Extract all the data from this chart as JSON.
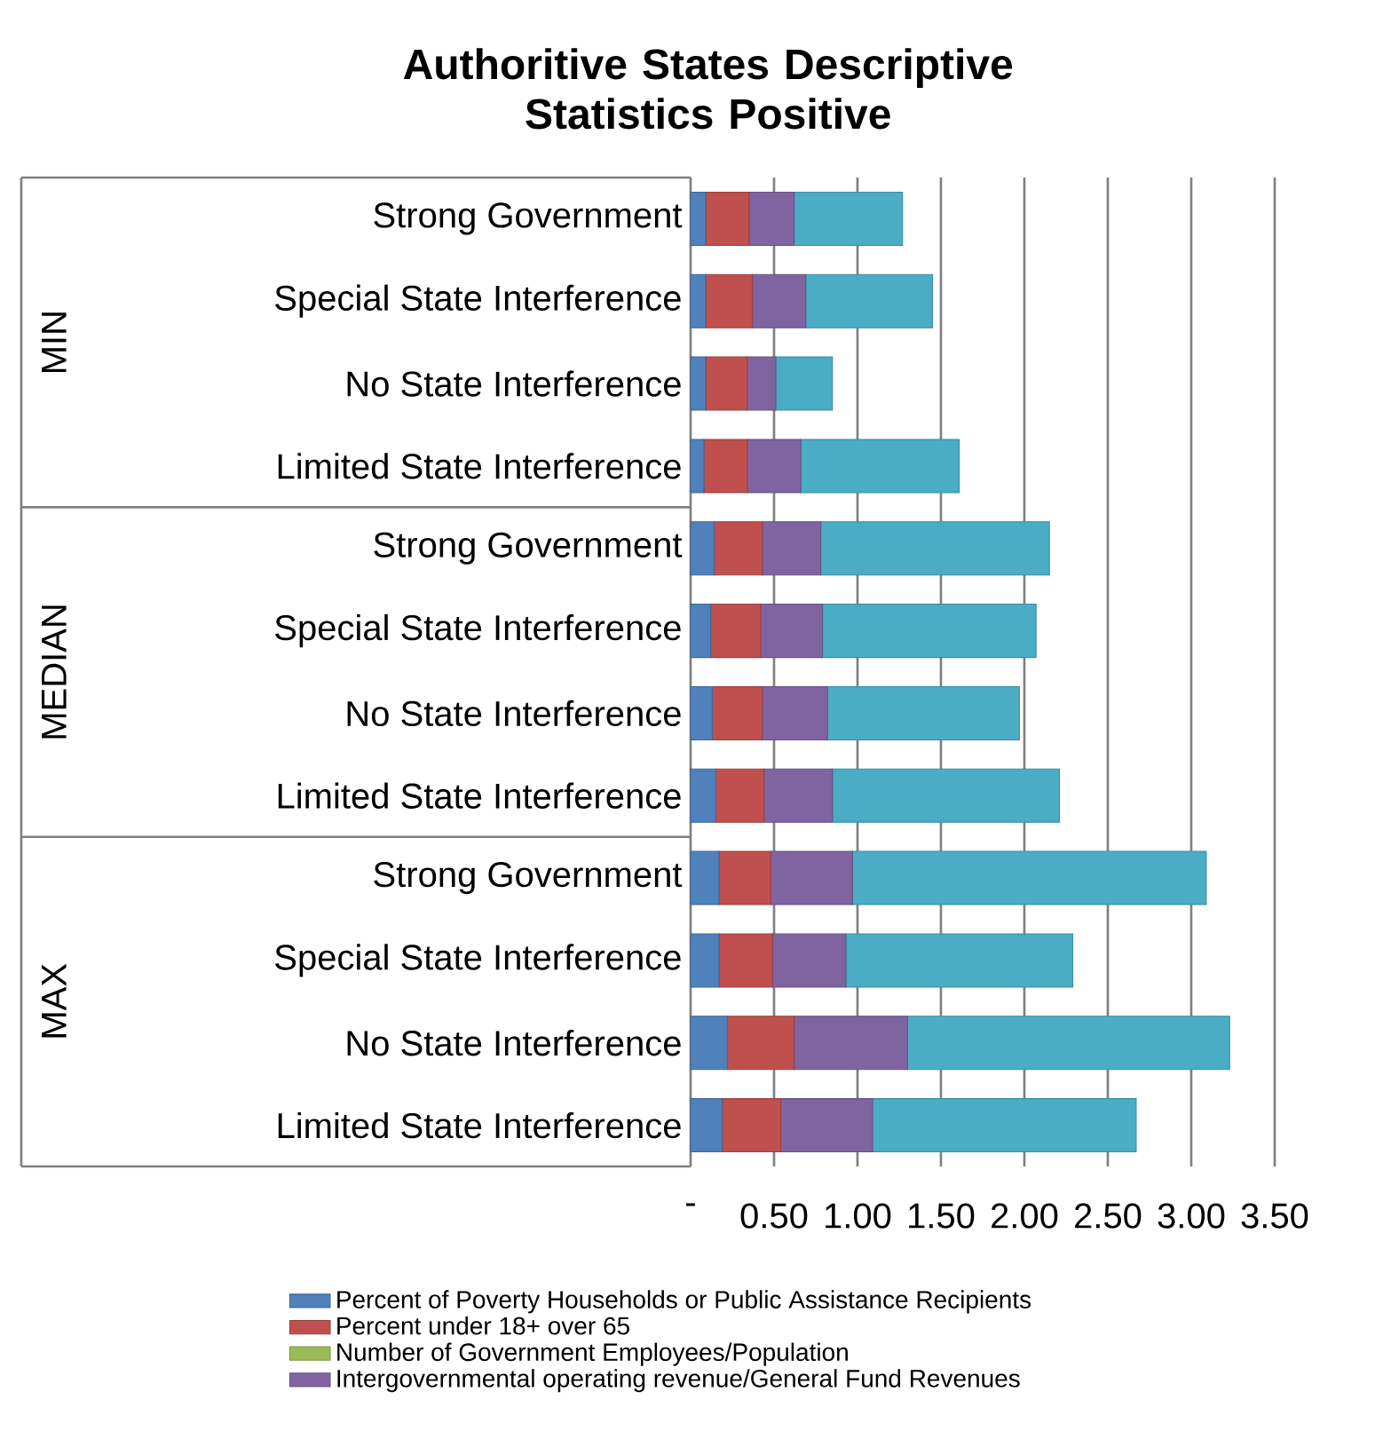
{
  "chart_data": {
    "type": "bar",
    "orientation": "horizontal",
    "stacked": true,
    "title": "Authoritive States Descriptive Statistics Positive",
    "categories": [
      "Strong Government",
      "Special State Interference",
      "No State Interference",
      "Limited State Interference",
      "Strong Government",
      "Special State Interference",
      "No State Interference",
      "Limited State Interference",
      "Strong Government",
      "Special State Interference",
      "No State Interference",
      "Limited State Interference"
    ],
    "annotations": [
      "MIN",
      "MEDIAN",
      "MAX"
    ],
    "series": [
      {
        "name": "Percent of Poverty Households or Public Assistance Recipients",
        "color": "#4f81bd",
        "values": [
          0.09,
          0.09,
          0.09,
          0.08,
          0.14,
          0.12,
          0.13,
          0.15,
          0.17,
          0.17,
          0.22,
          0.19
        ]
      },
      {
        "name": "Percent under 18+ over 65",
        "color": "#c0504d",
        "values": [
          0.26,
          0.28,
          0.25,
          0.26,
          0.29,
          0.3,
          0.3,
          0.29,
          0.31,
          0.32,
          0.4,
          0.35
        ]
      },
      {
        "name": "Number of Government Employees/Population",
        "color": "#9bbb59",
        "values": [
          0,
          0,
          0,
          0,
          0,
          0,
          0,
          0,
          0,
          0,
          0,
          0
        ]
      },
      {
        "name": "Intergovernmental operating revenue/General Fund Revenues",
        "color": "#8064a2",
        "values": [
          0.27,
          0.32,
          0.17,
          0.32,
          0.35,
          0.37,
          0.39,
          0.41,
          0.49,
          0.44,
          0.68,
          0.55
        ]
      },
      {
        "color": "#4bacc6",
        "values": [
          0.65,
          0.76,
          0.34,
          0.95,
          1.37,
          1.28,
          1.15,
          1.36,
          2.12,
          1.36,
          1.93,
          1.58
        ]
      }
    ],
    "xlim": [
      0,
      3.5
    ],
    "xticks": [
      {
        "value": 0,
        "label": "-"
      },
      {
        "value": 0.5,
        "label": "0.50"
      },
      {
        "value": 1,
        "label": "1.00"
      },
      {
        "value": 1.5,
        "label": "1.50"
      },
      {
        "value": 2,
        "label": "2.00"
      },
      {
        "value": 2.5,
        "label": "2.50"
      },
      {
        "value": 3,
        "label": "3.00"
      },
      {
        "value": 3.5,
        "label": "3.50"
      }
    ],
    "grid": "x",
    "legend": "bottom"
  }
}
